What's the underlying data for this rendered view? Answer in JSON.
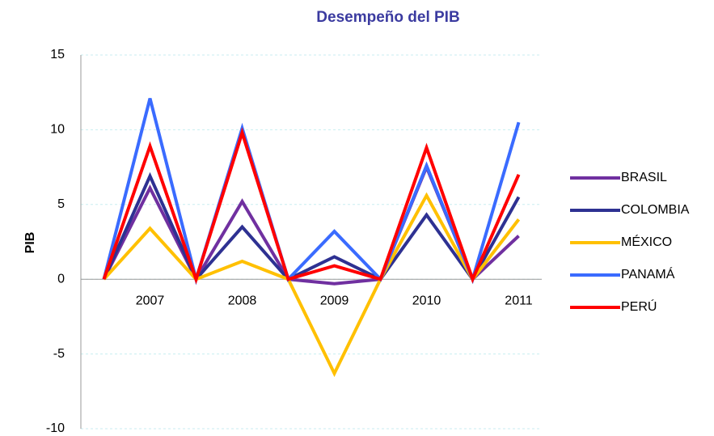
{
  "chart_data": {
    "type": "line",
    "title": "Desempeño del PIB",
    "y_label": "PIB",
    "categories": [
      null,
      "2007",
      null,
      "2008",
      null,
      "2009",
      null,
      "2010",
      null,
      "2011"
    ],
    "series": [
      {
        "name": "BRASIL",
        "color": "#7030a0",
        "values": [
          0,
          6.1,
          0,
          5.2,
          0,
          -0.3,
          0,
          7.5,
          0,
          2.9
        ]
      },
      {
        "name": "COLOMBIA",
        "color": "#2e3192",
        "values": [
          0,
          6.9,
          0,
          3.5,
          0,
          1.5,
          0,
          4.3,
          0,
          5.5
        ]
      },
      {
        "name": "MÉXICO",
        "color": "#ffc000",
        "values": [
          0,
          3.4,
          0,
          1.2,
          0,
          -6.3,
          0,
          5.6,
          0,
          4.0
        ]
      },
      {
        "name": "PANAMÁ",
        "color": "#3a6bff",
        "values": [
          0,
          12.1,
          0,
          10.1,
          0,
          3.2,
          0,
          7.6,
          0,
          10.5
        ]
      },
      {
        "name": "PERÚ",
        "color": "#ff0000",
        "values": [
          0,
          8.9,
          0,
          9.8,
          0,
          0.9,
          0,
          8.8,
          0,
          7.0
        ]
      }
    ],
    "ylim": [
      -10,
      15
    ],
    "yticks": [
      -10,
      -5,
      0,
      5,
      10,
      15
    ],
    "grid": true,
    "legend": "right"
  }
}
